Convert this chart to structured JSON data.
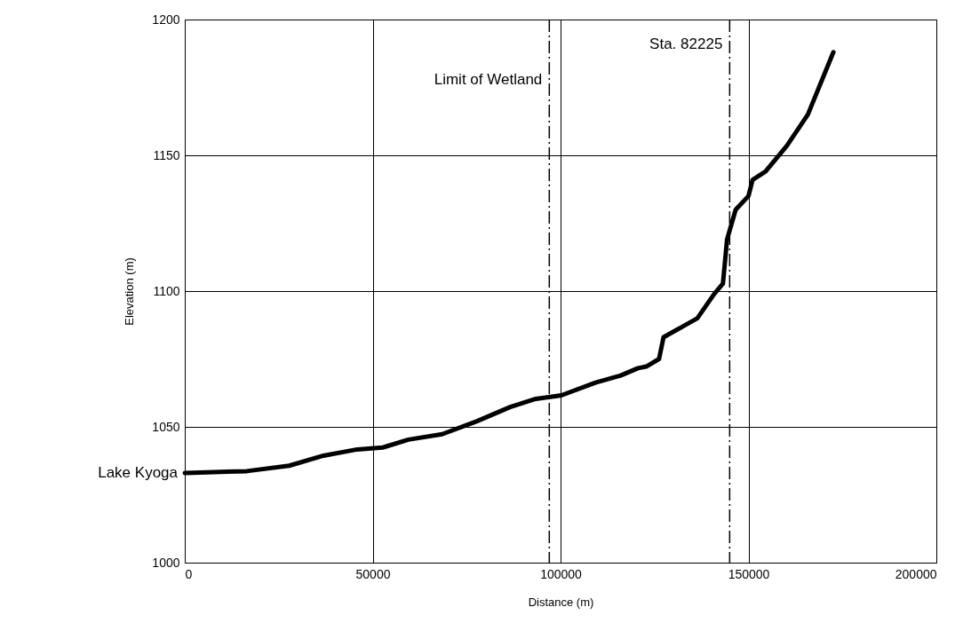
{
  "chart_data": {
    "type": "line",
    "xlabel": "Distance (m)",
    "ylabel": "Elevation (m)",
    "x": [
      0,
      16500,
      27800,
      36900,
      45900,
      52700,
      59500,
      68500,
      77600,
      86600,
      93400,
      100200,
      109300,
      116000,
      120600,
      122800,
      126200,
      127400,
      131900,
      136400,
      140900,
      143200,
      144300,
      146600,
      150000,
      151100,
      154500,
      160200,
      165800,
      172600
    ],
    "series": [
      {
        "color": "#000000",
        "values": [
          1033,
          1033.7,
          1035.7,
          1039.4,
          1041.7,
          1042.4,
          1045.3,
          1047.3,
          1052,
          1057.3,
          1060.3,
          1061.6,
          1066.3,
          1068.9,
          1071.6,
          1072.2,
          1075,
          1083,
          1086.5,
          1090,
          1099,
          1102.7,
          1119,
          1130,
          1135,
          1141,
          1144,
          1153.5,
          1165,
          1188
        ]
      }
    ],
    "xlim": [
      0,
      200000
    ],
    "xticks": [
      0,
      50000,
      100000,
      150000,
      200000
    ],
    "ylim": [
      1000,
      1200
    ],
    "yticks": [
      1000,
      1050,
      1100,
      1150,
      1200
    ],
    "grid": true,
    "marker": "none",
    "line_style": "solid",
    "ref_lines": [
      {
        "axis": "x",
        "value": 97000,
        "label": "Limit of Wetland",
        "color": "#000000",
        "line_style": "dashed"
      },
      {
        "axis": "x",
        "value": 145000,
        "label": "Sta. 82225",
        "color": "#000000",
        "line_style": "dashed"
      }
    ],
    "annotations": [
      {
        "text": "Lake Kyoga",
        "x": 0,
        "y": 1033
      }
    ]
  }
}
